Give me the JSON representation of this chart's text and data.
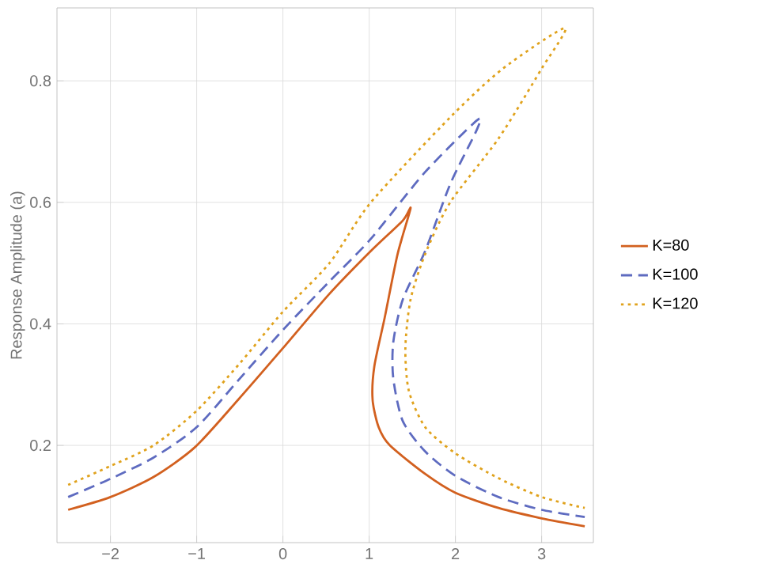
{
  "chart_data": {
    "type": "line",
    "ylabel": "Response Amplitude (a)",
    "xlim": [
      -2.62,
      3.6
    ],
    "ylim": [
      0.04,
      0.92
    ],
    "xticks": [
      {
        "value": -2,
        "label": "−2"
      },
      {
        "value": -1,
        "label": "−1"
      },
      0,
      1,
      2,
      3
    ],
    "yticks": [
      0.2,
      0.4,
      0.6,
      0.8
    ],
    "grid": true,
    "legend": "right",
    "marker": "none",
    "series": [
      {
        "name": "K=80",
        "color": "#d2601f",
        "line_style": "solid",
        "x": [
          -2.49,
          -2,
          -1.5,
          -1.02,
          -0.52,
          0,
          0.53,
          1.02,
          1.39,
          1.48,
          1.33,
          1.18,
          1.06,
          1.04,
          1.11,
          1.24,
          1.65,
          2.0,
          2.5,
          3.0,
          3.5
        ],
        "values": [
          0.094,
          0.115,
          0.148,
          0.197,
          0.275,
          0.36,
          0.448,
          0.52,
          0.57,
          0.59,
          0.515,
          0.41,
          0.33,
          0.275,
          0.23,
          0.2,
          0.153,
          0.122,
          0.097,
          0.08,
          0.067
        ]
      },
      {
        "name": "K=100",
        "color": "#5e6bc0",
        "line_style": "dashed",
        "x": [
          -2.49,
          -2,
          -1.5,
          -1,
          -0.5,
          0,
          0.54,
          1.02,
          1.65,
          2.25,
          2.25,
          1.94,
          1.65,
          1.39,
          1.28,
          1.28,
          1.39,
          1.65,
          2.0,
          2.5,
          3.0,
          3.5
        ],
        "values": [
          0.115,
          0.145,
          0.18,
          0.23,
          0.31,
          0.39,
          0.47,
          0.54,
          0.65,
          0.735,
          0.72,
          0.63,
          0.52,
          0.44,
          0.37,
          0.31,
          0.24,
          0.19,
          0.15,
          0.115,
          0.094,
          0.082
        ]
      },
      {
        "name": "K=120",
        "color": "#e0a21c",
        "line_style": "dotted",
        "x": [
          -2.49,
          -2,
          -1.5,
          -1,
          -0.5,
          0,
          0.54,
          1.02,
          1.94,
          2.55,
          3.27,
          3.0,
          2.5,
          1.94,
          1.65,
          1.48,
          1.42,
          1.46,
          1.65,
          2.0,
          2.5,
          3.0,
          3.5
        ],
        "values": [
          0.135,
          0.166,
          0.2,
          0.257,
          0.335,
          0.42,
          0.5,
          0.6,
          0.74,
          0.82,
          0.887,
          0.82,
          0.705,
          0.6,
          0.515,
          0.44,
          0.36,
          0.29,
          0.23,
          0.187,
          0.146,
          0.115,
          0.097
        ]
      }
    ]
  }
}
